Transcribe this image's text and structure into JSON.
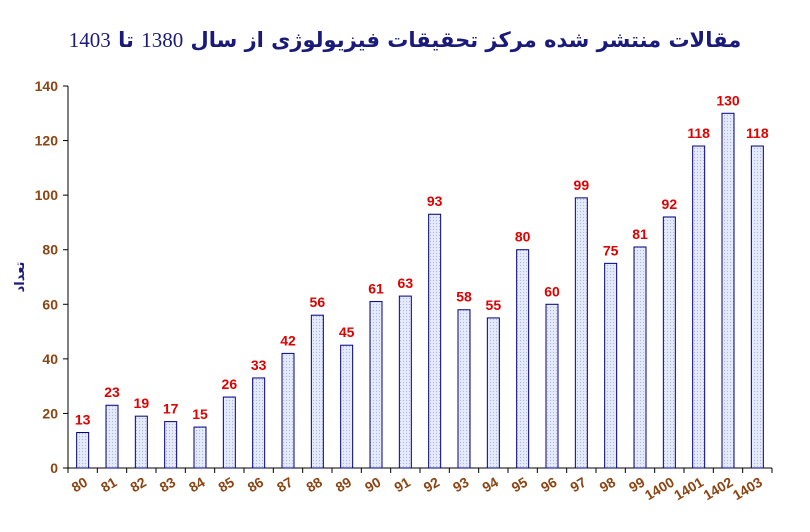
{
  "chart_data": {
    "type": "bar",
    "title_parts": [
      "مقالات منتشر شده مرکز تحقیقات فیزیولوژی از سال",
      "1380",
      "تا",
      "1403"
    ],
    "ylabel": "تعداد",
    "xlabel": "",
    "ylim": [
      0,
      140
    ],
    "yticks": [
      0,
      20,
      40,
      60,
      80,
      100,
      120,
      140
    ],
    "grid": false,
    "legend": "none",
    "categories": [
      "80",
      "81",
      "82",
      "83",
      "84",
      "85",
      "86",
      "87",
      "88",
      "89",
      "90",
      "91",
      "92",
      "93",
      "94",
      "95",
      "96",
      "97",
      "98",
      "99",
      "1400",
      "1401",
      "1402",
      "1403"
    ],
    "values": [
      13,
      23,
      19,
      17,
      15,
      26,
      33,
      42,
      56,
      45,
      61,
      63,
      93,
      58,
      55,
      80,
      60,
      99,
      75,
      81,
      92,
      118,
      130,
      118
    ],
    "colors": {
      "bar_fill": "#dfe5fb",
      "bar_stroke": "#000080",
      "data_label": "#e00000",
      "tick_label": "#8b4513",
      "title": "#1a1a7a"
    }
  }
}
